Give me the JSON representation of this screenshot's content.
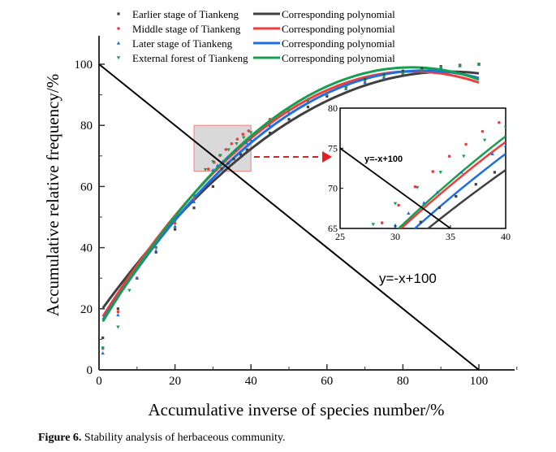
{
  "chart_data": {
    "type": "scatter",
    "title": "",
    "xlabel": "Accumulative inverse of species number/%",
    "ylabel": "Accumulative relative frequency/%",
    "xlim": [
      0,
      108
    ],
    "ylim": [
      0,
      110
    ],
    "xticks": [
      0,
      20,
      40,
      60,
      80,
      100
    ],
    "yticks": [
      0,
      20,
      40,
      60,
      80,
      100
    ],
    "legend_position": "top",
    "series": [
      {
        "name": "Earlier stage of Tiankeng",
        "marker": "square",
        "color": "#404040",
        "fit_label": "Corresponding polynomial",
        "fit": [
          18.5,
          1.718,
          -0.00933
        ],
        "points": [
          [
            1,
            10.5
          ],
          [
            5,
            20
          ],
          [
            10,
            30
          ],
          [
            15,
            38.5
          ],
          [
            20,
            46
          ],
          [
            25,
            53
          ],
          [
            30,
            60
          ],
          [
            32.3,
            65.8
          ],
          [
            34,
            67.6
          ],
          [
            35.5,
            69
          ],
          [
            37.3,
            70.5
          ],
          [
            39,
            72
          ],
          [
            45,
            77.5
          ],
          [
            50,
            82
          ],
          [
            55,
            86
          ],
          [
            60,
            89.5
          ],
          [
            65,
            92.5
          ],
          [
            70,
            95
          ],
          [
            75,
            96.5
          ],
          [
            80,
            97.8
          ],
          [
            85,
            98.7
          ],
          [
            90,
            99.3
          ],
          [
            95,
            99.7
          ],
          [
            100,
            100
          ]
        ]
      },
      {
        "name": "Middle stage of Tiankeng",
        "marker": "circle",
        "color": "#f03c3c",
        "fit_label": "Corresponding polynomial",
        "fit": [
          15.5,
          1.989,
          -0.01204
        ],
        "points": [
          [
            1,
            7
          ],
          [
            5,
            19
          ],
          [
            10,
            30
          ],
          [
            15,
            40
          ],
          [
            20,
            48
          ],
          [
            25,
            56
          ],
          [
            28.8,
            65.7
          ],
          [
            30.3,
            67.9
          ],
          [
            31.8,
            70.2
          ],
          [
            33.4,
            72.1
          ],
          [
            34.9,
            74
          ],
          [
            36.4,
            75.5
          ],
          [
            37.9,
            77.1
          ],
          [
            39.4,
            78.2
          ],
          [
            45,
            82
          ],
          [
            50,
            85
          ],
          [
            55,
            88
          ],
          [
            60,
            90.5
          ],
          [
            65,
            92.5
          ],
          [
            70,
            94
          ],
          [
            75,
            95.5
          ],
          [
            80,
            97
          ],
          [
            85,
            98
          ],
          [
            90,
            99
          ],
          [
            95,
            99.5
          ],
          [
            100,
            100
          ]
        ]
      },
      {
        "name": "Later stage of Tiankeng",
        "marker": "triangle-up",
        "color": "#1f6fe0",
        "fit_label": "Corresponding polynomial",
        "fit": [
          14.5,
          1.952,
          -0.01142
        ],
        "points": [
          [
            1,
            5.5
          ],
          [
            5,
            18
          ],
          [
            10,
            30
          ],
          [
            15,
            39
          ],
          [
            20,
            47
          ],
          [
            25,
            55
          ],
          [
            30,
            65.4
          ],
          [
            31.2,
            66.9
          ],
          [
            32.6,
            68.2
          ],
          [
            33.8,
            69.5
          ],
          [
            36,
            72
          ],
          [
            38.8,
            74.3
          ],
          [
            40,
            75.3
          ],
          [
            45,
            80
          ],
          [
            50,
            84
          ],
          [
            55,
            87.5
          ],
          [
            60,
            90
          ],
          [
            65,
            92
          ],
          [
            70,
            94
          ],
          [
            75,
            95.5
          ],
          [
            80,
            97
          ],
          [
            85,
            98
          ],
          [
            90,
            99
          ],
          [
            95,
            99.5
          ],
          [
            100,
            100
          ]
        ]
      },
      {
        "name": "External forest of Tiankeng",
        "marker": "triangle-down",
        "color": "#14a050",
        "fit_label": "Corresponding polynomial",
        "fit": [
          13.8,
          2.071,
          -0.01259
        ],
        "points": [
          [
            1,
            7.2
          ],
          [
            5,
            14
          ],
          [
            8,
            26
          ],
          [
            15,
            40
          ],
          [
            20,
            48.5
          ],
          [
            25,
            57
          ],
          [
            28,
            65.5
          ],
          [
            30,
            68.1
          ],
          [
            32,
            70.1
          ],
          [
            34.1,
            72
          ],
          [
            36.2,
            74
          ],
          [
            38.1,
            76
          ],
          [
            40,
            77.6
          ],
          [
            45,
            81.5
          ],
          [
            50,
            85
          ],
          [
            55,
            88
          ],
          [
            60,
            90.5
          ],
          [
            65,
            92.5
          ],
          [
            70,
            94.5
          ],
          [
            75,
            96
          ],
          [
            80,
            97
          ],
          [
            85,
            98
          ],
          [
            90,
            99
          ],
          [
            95,
            99.5
          ],
          [
            100,
            100
          ]
        ]
      }
    ],
    "reference_line": {
      "label": "y=-x+100",
      "slope": -1,
      "intercept": 100
    },
    "inset": {
      "xlim": [
        25,
        40
      ],
      "ylim": [
        65,
        80
      ],
      "xticks": [
        25,
        30,
        35,
        40
      ],
      "yticks": [
        65,
        70,
        75,
        80
      ],
      "label": "y=-x+100",
      "highlight_color": "#d9d9d9",
      "arrow_color": "#e02020"
    }
  },
  "caption": {
    "label": "Figure 6.",
    "text": " Stability analysis of herbaceous community."
  }
}
